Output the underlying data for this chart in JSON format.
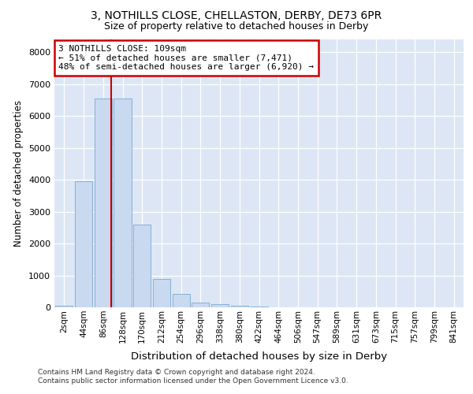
{
  "title1": "3, NOTHILLS CLOSE, CHELLASTON, DERBY, DE73 6PR",
  "title2": "Size of property relative to detached houses in Derby",
  "xlabel": "Distribution of detached houses by size in Derby",
  "ylabel": "Number of detached properties",
  "bar_categories": [
    "2sqm",
    "44sqm",
    "86sqm",
    "128sqm",
    "170sqm",
    "212sqm",
    "254sqm",
    "296sqm",
    "338sqm",
    "380sqm",
    "422sqm",
    "464sqm",
    "506sqm",
    "547sqm",
    "589sqm",
    "631sqm",
    "673sqm",
    "715sqm",
    "757sqm",
    "799sqm",
    "841sqm"
  ],
  "bar_heights": [
    45,
    3950,
    6550,
    6550,
    2600,
    900,
    420,
    155,
    105,
    55,
    25,
    12,
    5,
    2,
    1,
    1,
    0,
    0,
    0,
    0,
    0
  ],
  "bar_color": "#c9d9f0",
  "bar_edgecolor": "#7aaad0",
  "vline_color": "#cc0000",
  "vline_x": 2.42,
  "annotation_text": "3 NOTHILLS CLOSE: 109sqm\n← 51% of detached houses are smaller (7,471)\n48% of semi-detached houses are larger (6,920) →",
  "annotation_box_color": "#ffffff",
  "annotation_box_edgecolor": "#cc0000",
  "ylim": [
    0,
    8400
  ],
  "yticks": [
    0,
    1000,
    2000,
    3000,
    4000,
    5000,
    6000,
    7000,
    8000
  ],
  "bg_color": "#dce6f5",
  "footnote": "Contains HM Land Registry data © Crown copyright and database right 2024.\nContains public sector information licensed under the Open Government Licence v3.0.",
  "title1_fontsize": 10,
  "title2_fontsize": 9,
  "xlabel_fontsize": 9.5,
  "ylabel_fontsize": 8.5
}
